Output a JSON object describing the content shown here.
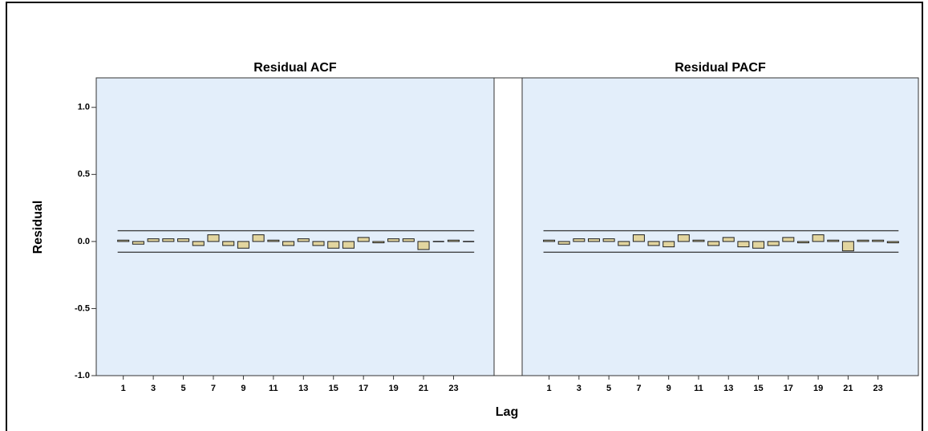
{
  "axes": {
    "xlabel": "Lag",
    "ylabel": "Residual"
  },
  "chart_data": [
    {
      "type": "bar",
      "title": "Residual ACF",
      "x": [
        1,
        2,
        3,
        4,
        5,
        6,
        7,
        8,
        9,
        10,
        11,
        12,
        13,
        14,
        15,
        16,
        17,
        18,
        19,
        20,
        21,
        22,
        23,
        24
      ],
      "values": [
        0.01,
        -0.02,
        0.02,
        0.02,
        0.02,
        -0.03,
        0.05,
        -0.03,
        -0.05,
        0.05,
        0.01,
        -0.03,
        0.02,
        -0.03,
        -0.05,
        -0.05,
        0.03,
        -0.01,
        0.02,
        0.02,
        -0.06,
        0.0,
        0.01,
        0.0
      ],
      "color": "#e2d59f",
      "confidence_limits": [
        -0.08,
        0.08
      ],
      "xlim": [
        -0.8,
        25.7
      ],
      "xticks": [
        1,
        3,
        5,
        7,
        9,
        11,
        13,
        15,
        17,
        19,
        21,
        23
      ],
      "ylim": [
        -1.0,
        1.22
      ],
      "yticks": [
        {
          "value": -1,
          "label": "-1.0"
        },
        {
          "value": -0.5,
          "label": "-0.5"
        },
        {
          "value": 0,
          "label": "0.0"
        },
        {
          "value": 0.5,
          "label": "0.5"
        },
        {
          "value": 1,
          "label": "1.0"
        }
      ]
    },
    {
      "type": "bar",
      "title": "Residual PACF",
      "x": [
        1,
        2,
        3,
        4,
        5,
        6,
        7,
        8,
        9,
        10,
        11,
        12,
        13,
        14,
        15,
        16,
        17,
        18,
        19,
        20,
        21,
        22,
        23,
        24
      ],
      "values": [
        0.01,
        -0.02,
        0.02,
        0.02,
        0.02,
        -0.03,
        0.05,
        -0.03,
        -0.04,
        0.05,
        0.01,
        -0.03,
        0.03,
        -0.04,
        -0.05,
        -0.03,
        0.03,
        -0.01,
        0.05,
        0.01,
        -0.07,
        0.01,
        0.01,
        -0.01
      ],
      "color": "#e2d59f",
      "confidence_limits": [
        -0.08,
        0.08
      ],
      "xlim": [
        -0.8,
        25.7
      ],
      "xticks": [
        1,
        3,
        5,
        7,
        9,
        11,
        13,
        15,
        17,
        19,
        21,
        23
      ],
      "ylim": [
        -1.0,
        1.22
      ]
    }
  ]
}
